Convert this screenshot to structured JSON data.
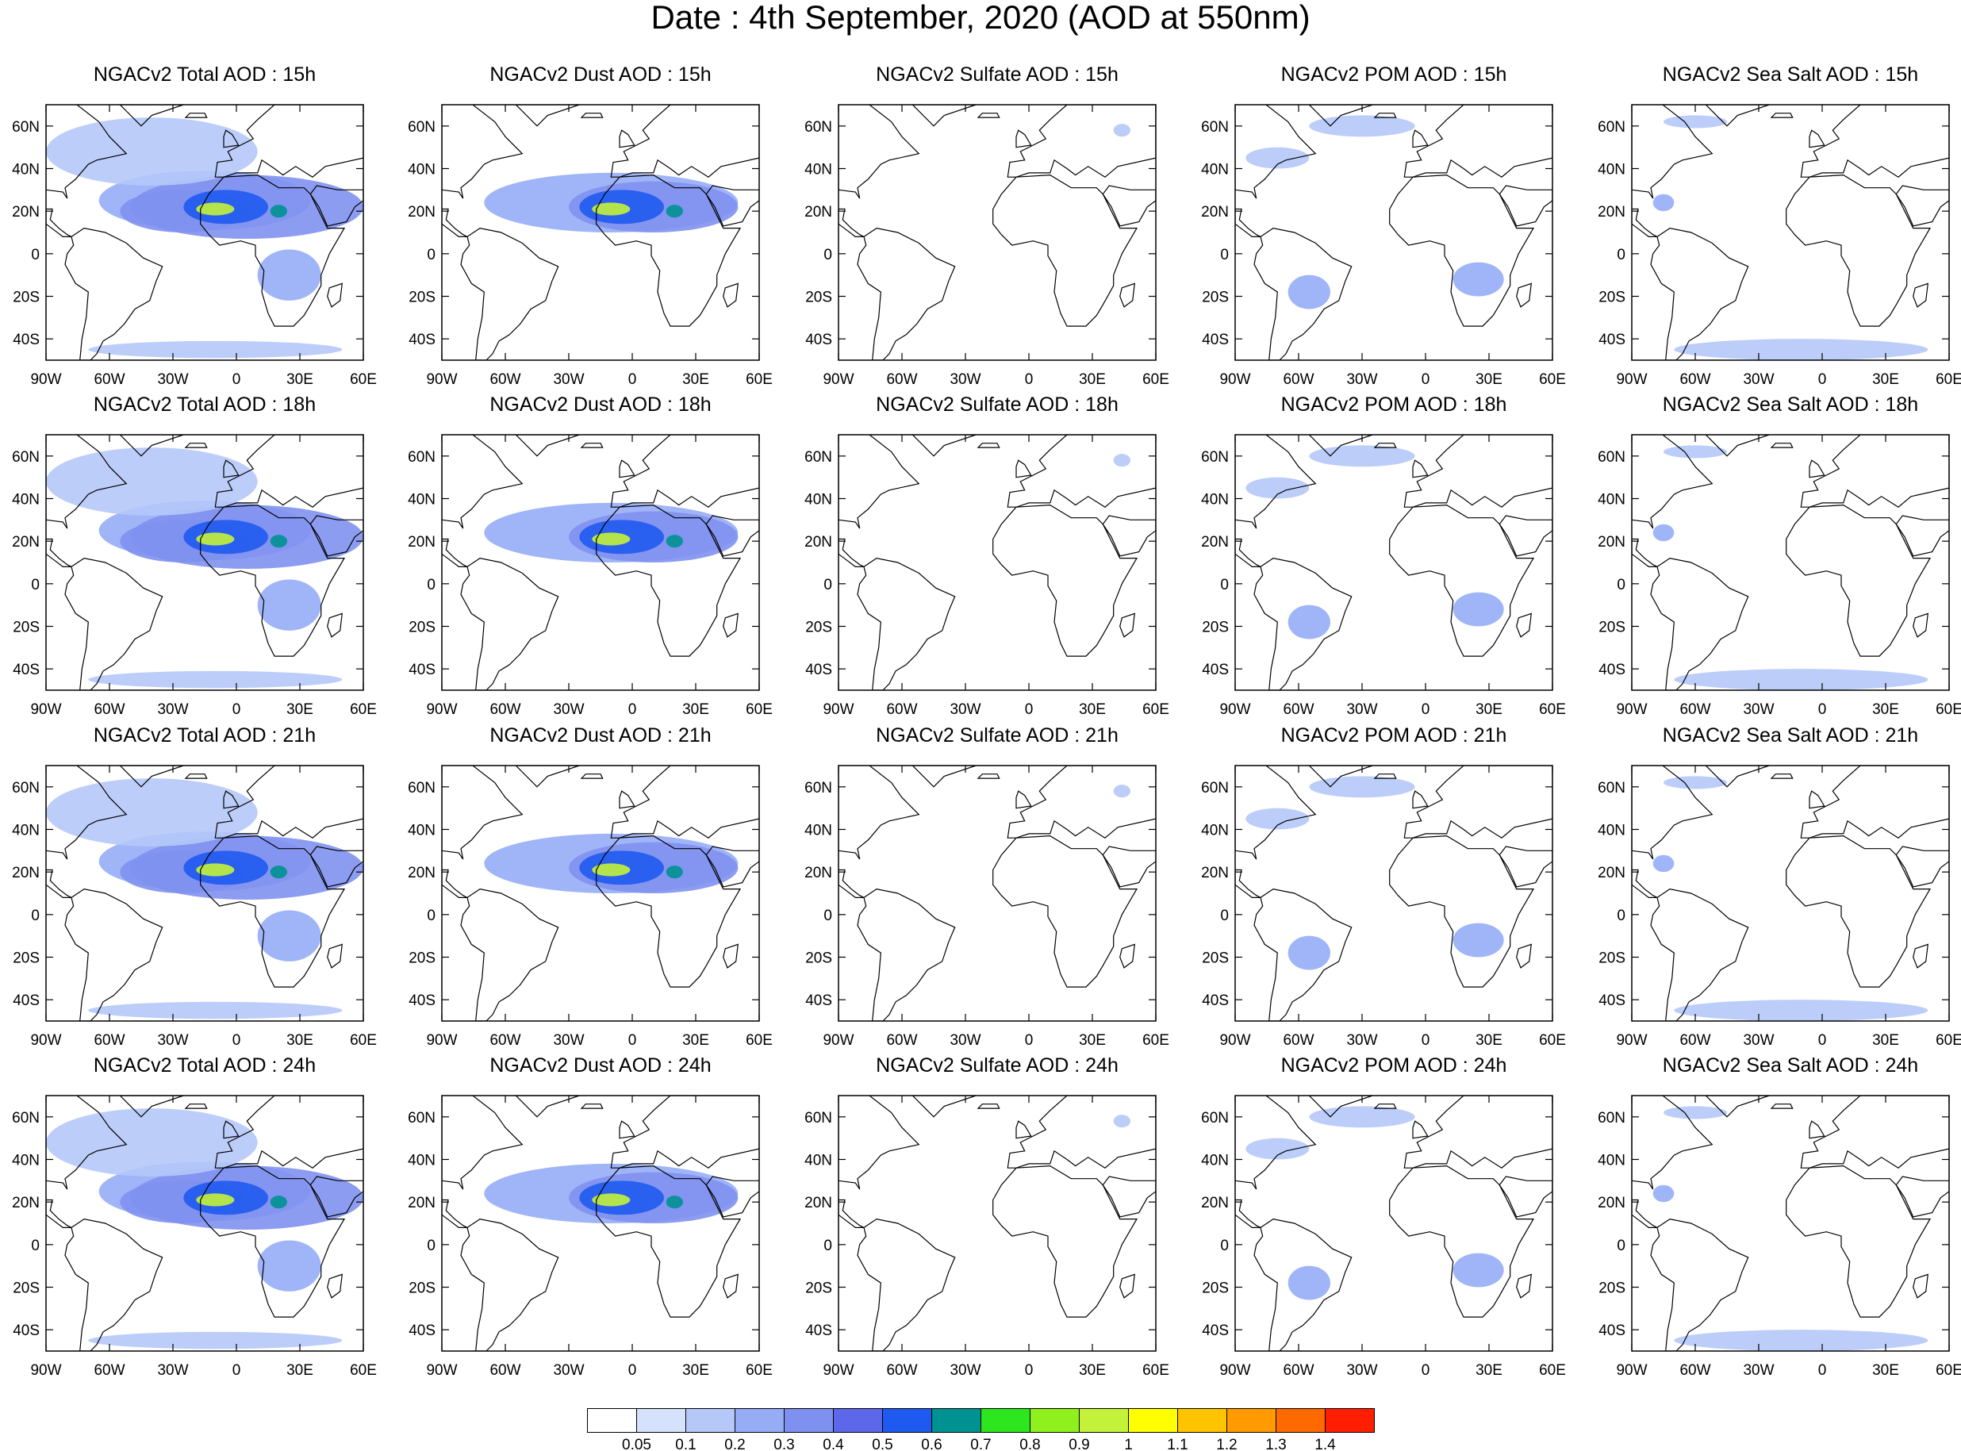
{
  "title": "Date : 4th September, 2020 (AOD at 550nm)",
  "panel_titles": [
    [
      "NGACv2 Total AOD : 15h",
      "NGACv2 Dust AOD : 15h",
      "NGACv2 Sulfate AOD : 15h",
      "NGACv2 POM AOD : 15h",
      "NGACv2 Sea Salt AOD : 15h"
    ],
    [
      "NGACv2 Total AOD : 18h",
      "NGACv2 Dust AOD : 18h",
      "NGACv2 Sulfate AOD : 18h",
      "NGACv2 POM AOD : 18h",
      "NGACv2 Sea Salt AOD : 18h"
    ],
    [
      "NGACv2 Total AOD : 21h",
      "NGACv2 Dust AOD : 21h",
      "NGACv2 Sulfate AOD : 21h",
      "NGACv2 POM AOD : 21h",
      "NGACv2 Sea Salt AOD : 21h"
    ],
    [
      "NGACv2 Total AOD : 24h",
      "NGACv2 Dust AOD : 24h",
      "NGACv2 Sulfate AOD : 24h",
      "NGACv2 POM AOD : 24h",
      "NGACv2 Sea Salt  AOD : 24h"
    ]
  ],
  "map": {
    "lon_range": [
      -90,
      60
    ],
    "lat_range": [
      -50,
      70
    ],
    "x_ticks": [
      {
        "value": -90,
        "label": "90W"
      },
      {
        "value": -60,
        "label": "60W"
      },
      {
        "value": -30,
        "label": "30W"
      },
      {
        "value": 0,
        "label": "0"
      },
      {
        "value": 30,
        "label": "30E"
      },
      {
        "value": 60,
        "label": "60E"
      }
    ],
    "y_ticks": [
      {
        "value": 60,
        "label": "60N"
      },
      {
        "value": 40,
        "label": "40N"
      },
      {
        "value": 20,
        "label": "20N"
      },
      {
        "value": 0,
        "label": "0"
      },
      {
        "value": -20,
        "label": "20S"
      },
      {
        "value": -40,
        "label": "40S"
      }
    ]
  },
  "aerosol_fields": {
    "total": [
      {
        "lon": -15,
        "lat": 25,
        "rlon": 50,
        "rlat": 14,
        "aod": 0.25
      },
      {
        "lon": 5,
        "lat": 22,
        "rlon": 55,
        "rlat": 15,
        "aod": 0.3
      },
      {
        "lon": -25,
        "lat": 20,
        "rlon": 30,
        "rlat": 10,
        "aod": 0.35
      },
      {
        "lon": -5,
        "lat": 22,
        "rlon": 20,
        "rlat": 8,
        "aod": 0.55
      },
      {
        "lon": -10,
        "lat": 21,
        "rlon": 9,
        "rlat": 3,
        "aod": 0.9
      },
      {
        "lon": 20,
        "lat": 20,
        "rlon": 4,
        "rlat": 3,
        "aod": 0.65
      },
      {
        "lon": -40,
        "lat": 48,
        "rlon": 50,
        "rlat": 16,
        "aod": 0.15
      },
      {
        "lon": 25,
        "lat": -10,
        "rlon": 15,
        "rlat": 12,
        "aod": 0.2
      },
      {
        "lon": -10,
        "lat": -45,
        "rlon": 60,
        "rlat": 4,
        "aod": 0.12
      }
    ],
    "dust": [
      {
        "lon": -10,
        "lat": 24,
        "rlon": 60,
        "rlat": 14,
        "aod": 0.25
      },
      {
        "lon": 10,
        "lat": 22,
        "rlon": 40,
        "rlat": 12,
        "aod": 0.3
      },
      {
        "lon": -5,
        "lat": 22,
        "rlon": 20,
        "rlat": 8,
        "aod": 0.55
      },
      {
        "lon": -10,
        "lat": 21,
        "rlon": 9,
        "rlat": 3,
        "aod": 0.9
      },
      {
        "lon": 20,
        "lat": 20,
        "rlon": 4,
        "rlat": 3,
        "aod": 0.65
      }
    ],
    "sulfate": [
      {
        "lon": 44,
        "lat": 58,
        "rlon": 4,
        "rlat": 3,
        "aod": 0.1
      }
    ],
    "pom": [
      {
        "lon": 25,
        "lat": -12,
        "rlon": 12,
        "rlat": 8,
        "aod": 0.25
      },
      {
        "lon": -55,
        "lat": -18,
        "rlon": 10,
        "rlat": 8,
        "aod": 0.2
      },
      {
        "lon": -70,
        "lat": 45,
        "rlon": 15,
        "rlat": 5,
        "aod": 0.15
      },
      {
        "lon": -30,
        "lat": 60,
        "rlon": 25,
        "rlat": 5,
        "aod": 0.1
      }
    ],
    "seasalt": [
      {
        "lon": -10,
        "lat": -45,
        "rlon": 60,
        "rlat": 5,
        "aod": 0.15
      },
      {
        "lon": -75,
        "lat": 24,
        "rlon": 5,
        "rlat": 4,
        "aod": 0.2
      },
      {
        "lon": -60,
        "lat": 62,
        "rlon": 15,
        "rlat": 3,
        "aod": 0.1
      }
    ]
  },
  "colorbar": {
    "labels": [
      "0.05",
      "0.1",
      "0.2",
      "0.3",
      "0.4",
      "0.5",
      "0.6",
      "0.7",
      "0.8",
      "0.9",
      "1",
      "1.1",
      "1.2",
      "1.3",
      "1.4"
    ],
    "colors": [
      "#ffffff",
      "#d6e2fb",
      "#b5c8f8",
      "#96adf6",
      "#7f91f0",
      "#5d67ea",
      "#1f5af0",
      "#009191",
      "#2de61e",
      "#8ff01e",
      "#c4f23a",
      "#ffff00",
      "#ffc400",
      "#ff9a00",
      "#ff6a00",
      "#ff1e00"
    ]
  }
}
